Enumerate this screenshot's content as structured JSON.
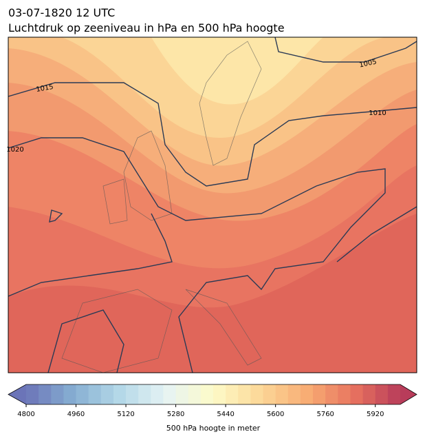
{
  "header": {
    "title": "03-07-1820 12 UTC",
    "subtitle": "Luchtdruk op zeeniveau in hPa en 500 hPa hoogte"
  },
  "isobar_labels": [
    1005,
    1010,
    1015,
    1020
  ],
  "colorbar": {
    "label": "500 hPa hoogte in meter",
    "lim": [
      4800,
      6000
    ],
    "step": 40,
    "ticks": [
      4800,
      4960,
      5120,
      5280,
      5440,
      5600,
      5760,
      5920
    ],
    "colors": [
      "#6b74b8",
      "#86aed2",
      "#b4d8e8",
      "#e6f4f4",
      "#fdfbc8",
      "#fcd898",
      "#f8ad74",
      "#e8735f",
      "#b83c5a"
    ]
  }
}
